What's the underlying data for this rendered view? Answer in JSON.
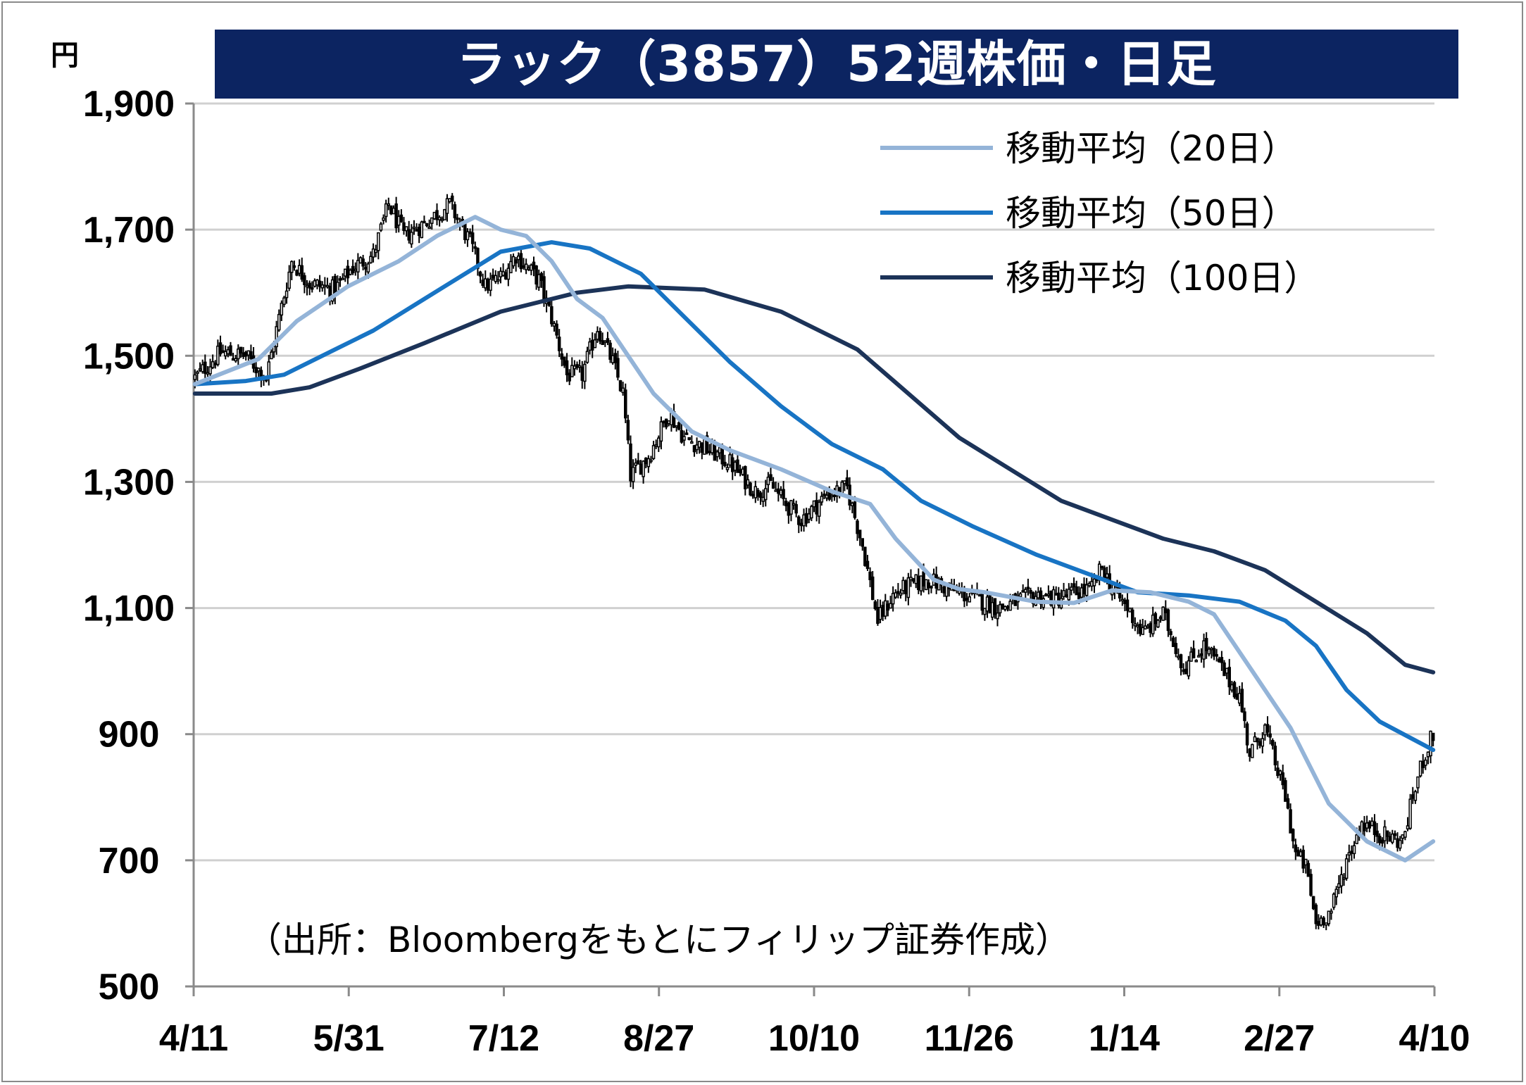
{
  "title": "ラック（3857）52週株価・日足",
  "unit": "円",
  "source": "（出所：Bloombergをもとにフィリップ証券作成）",
  "colors": {
    "title_bg": "#0c2461",
    "ma20": "#94b4d8",
    "ma50": "#1874c4",
    "ma100": "#1c3358",
    "grid": "#d0d0d0",
    "axis": "#8a8a8a",
    "candle": "#000000"
  },
  "chart_data": {
    "type": "candlestick",
    "title": "ラック（3857）52週株価・日足",
    "ylabel": "円",
    "ylim": [
      500,
      1900
    ],
    "yticks": [
      500,
      700,
      900,
      1100,
      1300,
      1500,
      1700,
      1900
    ],
    "ytick_labels": [
      "500",
      "700",
      "900",
      "1,100",
      "1,300",
      "1,500",
      "1,700",
      "1,900"
    ],
    "xtick_labels": [
      "4/11",
      "5/31",
      "7/12",
      "8/27",
      "10/10",
      "11/26",
      "1/14",
      "2/27",
      "4/10"
    ],
    "grid": true,
    "legend_position": "top-right",
    "legend": [
      "移動平均（20日）",
      "移動平均（50日）",
      "移動平均（100日）"
    ],
    "close_anchors": [
      [
        0,
        1465
      ],
      [
        10,
        1505
      ],
      [
        20,
        1500
      ],
      [
        28,
        1465
      ],
      [
        33,
        1560
      ],
      [
        38,
        1650
      ],
      [
        45,
        1615
      ],
      [
        55,
        1605
      ],
      [
        62,
        1640
      ],
      [
        70,
        1660
      ],
      [
        76,
        1740
      ],
      [
        82,
        1690
      ],
      [
        90,
        1710
      ],
      [
        100,
        1740
      ],
      [
        108,
        1680
      ],
      [
        114,
        1610
      ],
      [
        120,
        1625
      ],
      [
        126,
        1660
      ],
      [
        135,
        1620
      ],
      [
        140,
        1560
      ],
      [
        146,
        1470
      ],
      [
        152,
        1470
      ],
      [
        158,
        1545
      ],
      [
        164,
        1490
      ],
      [
        168,
        1440
      ],
      [
        171,
        1310
      ],
      [
        178,
        1340
      ],
      [
        186,
        1410
      ],
      [
        192,
        1370
      ],
      [
        200,
        1355
      ],
      [
        210,
        1330
      ],
      [
        220,
        1285
      ],
      [
        226,
        1295
      ],
      [
        232,
        1265
      ],
      [
        238,
        1240
      ],
      [
        248,
        1280
      ],
      [
        256,
        1290
      ],
      [
        262,
        1200
      ],
      [
        268,
        1080
      ],
      [
        274,
        1120
      ],
      [
        280,
        1135
      ],
      [
        288,
        1145
      ],
      [
        296,
        1130
      ],
      [
        306,
        1115
      ],
      [
        316,
        1100
      ],
      [
        322,
        1110
      ],
      [
        330,
        1120
      ],
      [
        338,
        1115
      ],
      [
        346,
        1125
      ],
      [
        352,
        1130
      ],
      [
        356,
        1165
      ],
      [
        360,
        1130
      ],
      [
        366,
        1100
      ],
      [
        372,
        1060
      ],
      [
        380,
        1090
      ],
      [
        384,
        1050
      ],
      [
        388,
        1005
      ],
      [
        396,
        1040
      ],
      [
        402,
        1010
      ],
      [
        410,
        960
      ],
      [
        414,
        870
      ],
      [
        420,
        910
      ],
      [
        428,
        800
      ],
      [
        432,
        710
      ],
      [
        436,
        690
      ],
      [
        440,
        600
      ],
      [
        446,
        620
      ],
      [
        452,
        700
      ],
      [
        458,
        760
      ],
      [
        466,
        740
      ],
      [
        474,
        730
      ],
      [
        478,
        800
      ],
      [
        482,
        860
      ],
      [
        486,
        900
      ]
    ],
    "ma20": [
      [
        0,
        1455
      ],
      [
        25,
        1495
      ],
      [
        40,
        1555
      ],
      [
        60,
        1610
      ],
      [
        80,
        1650
      ],
      [
        95,
        1690
      ],
      [
        110,
        1720
      ],
      [
        120,
        1700
      ],
      [
        130,
        1690
      ],
      [
        140,
        1650
      ],
      [
        150,
        1590
      ],
      [
        160,
        1560
      ],
      [
        170,
        1500
      ],
      [
        180,
        1440
      ],
      [
        195,
        1380
      ],
      [
        210,
        1350
      ],
      [
        230,
        1320
      ],
      [
        250,
        1285
      ],
      [
        265,
        1265
      ],
      [
        275,
        1210
      ],
      [
        290,
        1145
      ],
      [
        300,
        1130
      ],
      [
        310,
        1125
      ],
      [
        330,
        1110
      ],
      [
        345,
        1108
      ],
      [
        360,
        1128
      ],
      [
        375,
        1125
      ],
      [
        390,
        1110
      ],
      [
        400,
        1090
      ],
      [
        415,
        1000
      ],
      [
        430,
        910
      ],
      [
        445,
        790
      ],
      [
        460,
        730
      ],
      [
        475,
        700
      ],
      [
        486,
        730
      ]
    ],
    "ma50": [
      [
        0,
        1455
      ],
      [
        20,
        1460
      ],
      [
        35,
        1470
      ],
      [
        55,
        1510
      ],
      [
        70,
        1540
      ],
      [
        90,
        1590
      ],
      [
        110,
        1640
      ],
      [
        120,
        1665
      ],
      [
        140,
        1680
      ],
      [
        155,
        1670
      ],
      [
        175,
        1630
      ],
      [
        190,
        1570
      ],
      [
        210,
        1490
      ],
      [
        230,
        1420
      ],
      [
        250,
        1360
      ],
      [
        270,
        1320
      ],
      [
        285,
        1270
      ],
      [
        305,
        1230
      ],
      [
        330,
        1185
      ],
      [
        350,
        1155
      ],
      [
        370,
        1125
      ],
      [
        390,
        1120
      ],
      [
        410,
        1110
      ],
      [
        428,
        1080
      ],
      [
        440,
        1040
      ],
      [
        452,
        970
      ],
      [
        465,
        920
      ],
      [
        486,
        875
      ]
    ],
    "ma100": [
      [
        0,
        1440
      ],
      [
        30,
        1440
      ],
      [
        45,
        1450
      ],
      [
        65,
        1480
      ],
      [
        90,
        1520
      ],
      [
        120,
        1570
      ],
      [
        150,
        1600
      ],
      [
        170,
        1610
      ],
      [
        200,
        1605
      ],
      [
        230,
        1570
      ],
      [
        260,
        1510
      ],
      [
        280,
        1440
      ],
      [
        300,
        1370
      ],
      [
        320,
        1320
      ],
      [
        340,
        1270
      ],
      [
        360,
        1240
      ],
      [
        380,
        1210
      ],
      [
        400,
        1190
      ],
      [
        420,
        1160
      ],
      [
        440,
        1110
      ],
      [
        460,
        1060
      ],
      [
        475,
        1010
      ],
      [
        486,
        998
      ]
    ]
  }
}
